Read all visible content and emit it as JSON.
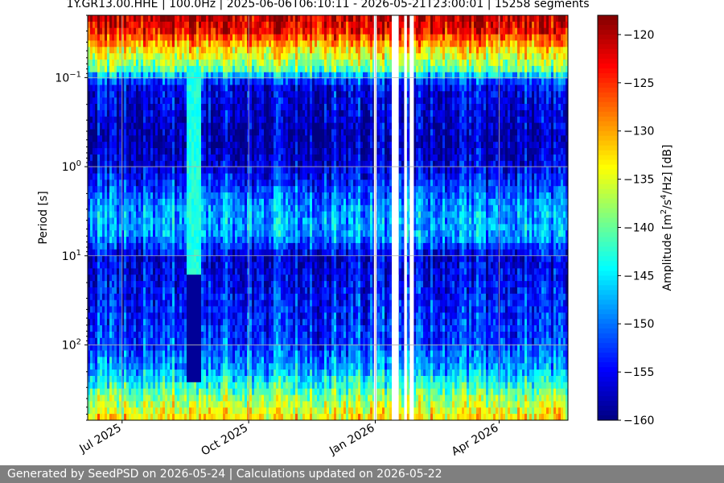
{
  "chart_data": {
    "type": "heatmap",
    "title": "1Y.GR13.00.HHE | 100.0Hz | 2025-06-06T06:10:11 - 2026-05-21T23:00:01 | 15258 segments",
    "xlabel": "",
    "ylabel": "Period [s]",
    "x_range": [
      "2025-06-06",
      "2026-05-21"
    ],
    "x_ticks": [
      {
        "date": "2025-07-01",
        "label": "Jul 2025"
      },
      {
        "date": "2025-10-01",
        "label": "Oct 2025"
      },
      {
        "date": "2026-01-01",
        "label": "Jan 2026"
      },
      {
        "date": "2026-04-01",
        "label": "Apr 2026"
      }
    ],
    "y_scale": "log",
    "y_inverted": true,
    "y_range": [
      0.02,
      700
    ],
    "y_ticks": [
      {
        "value": 0.1,
        "base": "10",
        "exp": "−1"
      },
      {
        "value": 1,
        "base": "10",
        "exp": "0"
      },
      {
        "value": 10,
        "base": "10",
        "exp": "1"
      },
      {
        "value": 100,
        "base": "10",
        "exp": "2"
      }
    ],
    "grid": true,
    "colormap": "jet",
    "colorbar": {
      "label": "Amplitude [m^2/s^4/Hz] [dB]",
      "range": [
        -160,
        -118
      ],
      "ticks": [
        -120,
        -125,
        -130,
        -135,
        -140,
        -145,
        -150,
        -155,
        -160
      ]
    },
    "profile": [
      {
        "period": 0.02,
        "db": -120
      },
      {
        "period": 0.03,
        "db": -123
      },
      {
        "period": 0.05,
        "db": -133
      },
      {
        "period": 0.08,
        "db": -140
      },
      {
        "period": 0.12,
        "db": -155
      },
      {
        "period": 0.5,
        "db": -158
      },
      {
        "period": 1,
        "db": -156
      },
      {
        "period": 3,
        "db": -148
      },
      {
        "period": 6,
        "db": -148
      },
      {
        "period": 10,
        "db": -156
      },
      {
        "period": 30,
        "db": -154
      },
      {
        "period": 100,
        "db": -152
      },
      {
        "period": 200,
        "db": -147
      },
      {
        "period": 400,
        "db": -138
      },
      {
        "period": 700,
        "db": -132
      }
    ],
    "data_gaps": [
      [
        "2025-12-31",
        "2026-01-02"
      ],
      [
        "2026-01-13",
        "2026-01-18"
      ],
      [
        "2026-01-22",
        "2026-01-24"
      ],
      [
        "2026-01-26",
        "2026-01-29"
      ]
    ],
    "low_noise_span": [
      "2025-08-18",
      "2025-08-26"
    ]
  },
  "footer": "Generated by SeedPSD on 2026-05-24 | Calculations updated on 2026-05-22"
}
